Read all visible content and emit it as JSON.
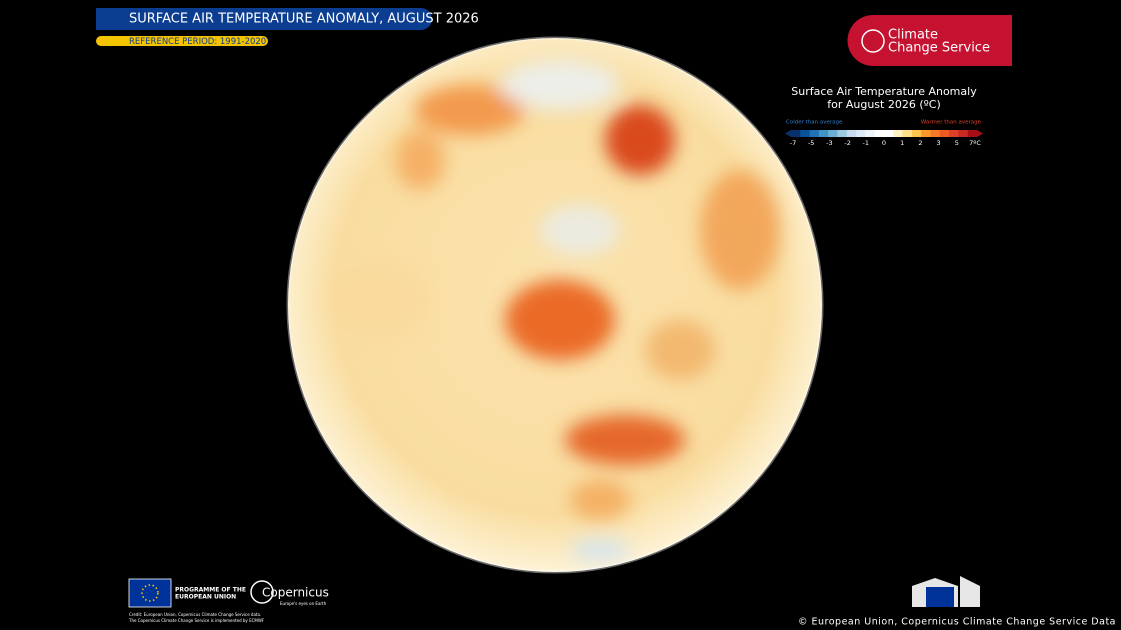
{
  "header": {
    "title": "SURFACE AIR TEMPERATURE ANOMALY, AUGUST 2026",
    "subtitle": "REFERENCE PERIOD: 1991-2020"
  },
  "logo": {
    "line1": "Climate",
    "line2": "Change Service"
  },
  "legend": {
    "title_line1": "Surface Air Temperature Anomaly",
    "title_line2": "for August 2026 (ºC)",
    "colder": "Colder than average",
    "warmer": "Warmer than average",
    "scale_labels": [
      "-7",
      "-5",
      "-3",
      "-2",
      "-1",
      "0",
      "1",
      "2",
      "3",
      "5",
      "7ºC"
    ]
  },
  "footer": {
    "programme_line1": "PROGRAMME OF THE",
    "programme_line2": "EUROPEAN UNION",
    "copernicus": "Copernicus",
    "copernicus_tagline": "Europe's eyes on Earth",
    "credit_line1": "Credit: European Union, Copernicus Climate Change Service data.",
    "credit_line2": "The Copernicus Climate Change Service is implemented by ECMWF",
    "copyright": "© European Union, Copernicus Climate Change Service Data"
  }
}
